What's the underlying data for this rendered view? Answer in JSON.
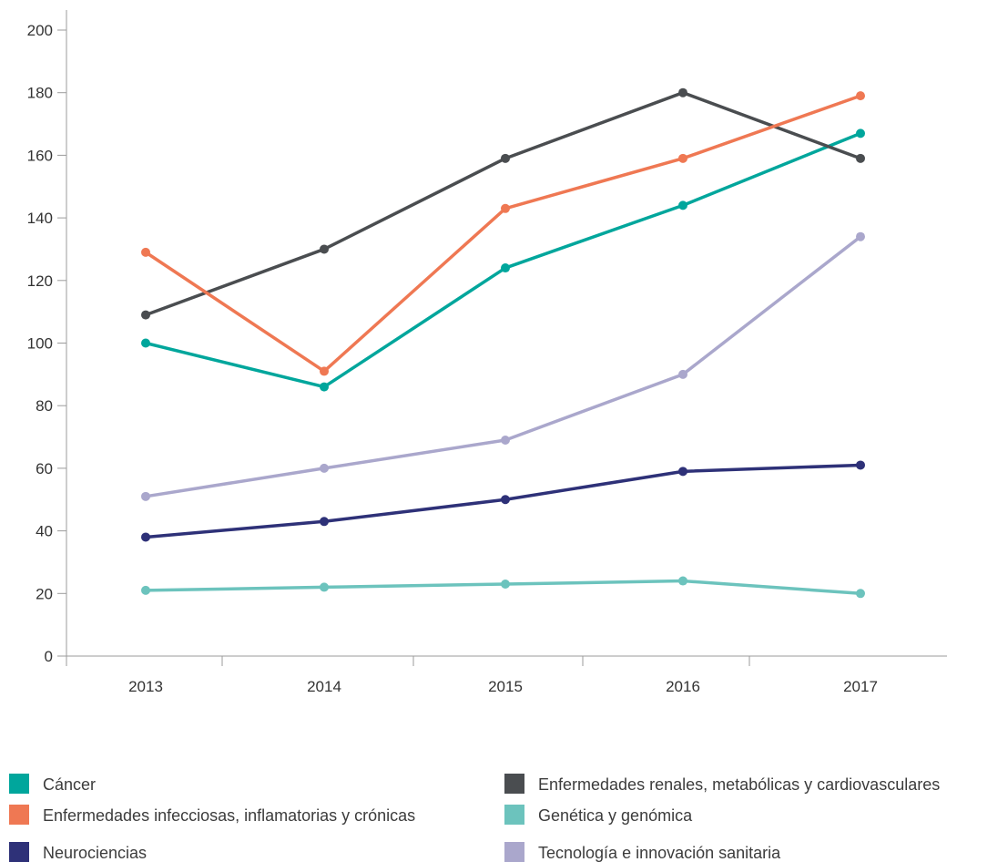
{
  "chart_data": {
    "type": "line",
    "title": "",
    "xlabel": "",
    "ylabel": "",
    "categories": [
      "2013",
      "2014",
      "2015",
      "2016",
      "2017"
    ],
    "ylim": [
      0,
      200
    ],
    "y_ticks": [
      0,
      20,
      40,
      60,
      80,
      100,
      120,
      140,
      160,
      180,
      200
    ],
    "grid": false,
    "legend_position": "bottom",
    "series": [
      {
        "name": "Cáncer",
        "color": "#00a69c",
        "values": [
          100,
          86,
          124,
          144,
          167
        ]
      },
      {
        "name": "Enfermedades renales, metabólicas y cardiovasculares",
        "color": "#4a4d50",
        "values": [
          109,
          130,
          159,
          180,
          159
        ]
      },
      {
        "name": "Enfermedades infecciosas, inflamatorias y crónicas",
        "color": "#ef7853",
        "values": [
          129,
          91,
          143,
          159,
          179
        ]
      },
      {
        "name": "Genética y genómica",
        "color": "#6cc3bd",
        "values": [
          21,
          22,
          23,
          24,
          20
        ]
      },
      {
        "name": "Neurociencias",
        "color": "#2e3178",
        "values": [
          38,
          43,
          50,
          59,
          61
        ]
      },
      {
        "name": "Tecnología e innovación sanitaria",
        "color": "#aaa7cc",
        "values": [
          51,
          60,
          69,
          90,
          134
        ]
      }
    ]
  }
}
